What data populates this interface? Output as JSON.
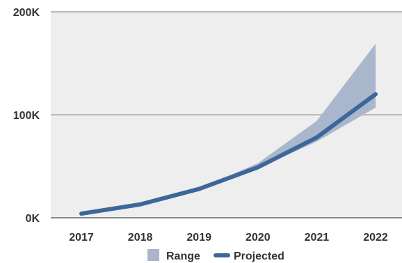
{
  "chart_data": {
    "type": "line",
    "categories": [
      "2017",
      "2018",
      "2019",
      "2020",
      "2021",
      "2022"
    ],
    "ylim": [
      0,
      200000
    ],
    "yticks": [
      {
        "value": 0,
        "label": "0K"
      },
      {
        "value": 100000,
        "label": "100K"
      },
      {
        "value": 200000,
        "label": "200K"
      }
    ],
    "grid": true,
    "legend_position": "bottom",
    "series": [
      {
        "name": "Range",
        "type": "area-band",
        "color": "#a9b6cc",
        "low": [
          4000,
          13000,
          27000,
          48000,
          74000,
          107000
        ],
        "high": [
          4000,
          13000,
          28000,
          53000,
          94000,
          169000
        ]
      },
      {
        "name": "Projected",
        "type": "line",
        "color": "#3d6699",
        "values": [
          4000,
          13000,
          28000,
          49000,
          78000,
          120000
        ]
      }
    ],
    "plot_background": "#eeeeee",
    "grid_color": "#bbbbbb"
  }
}
